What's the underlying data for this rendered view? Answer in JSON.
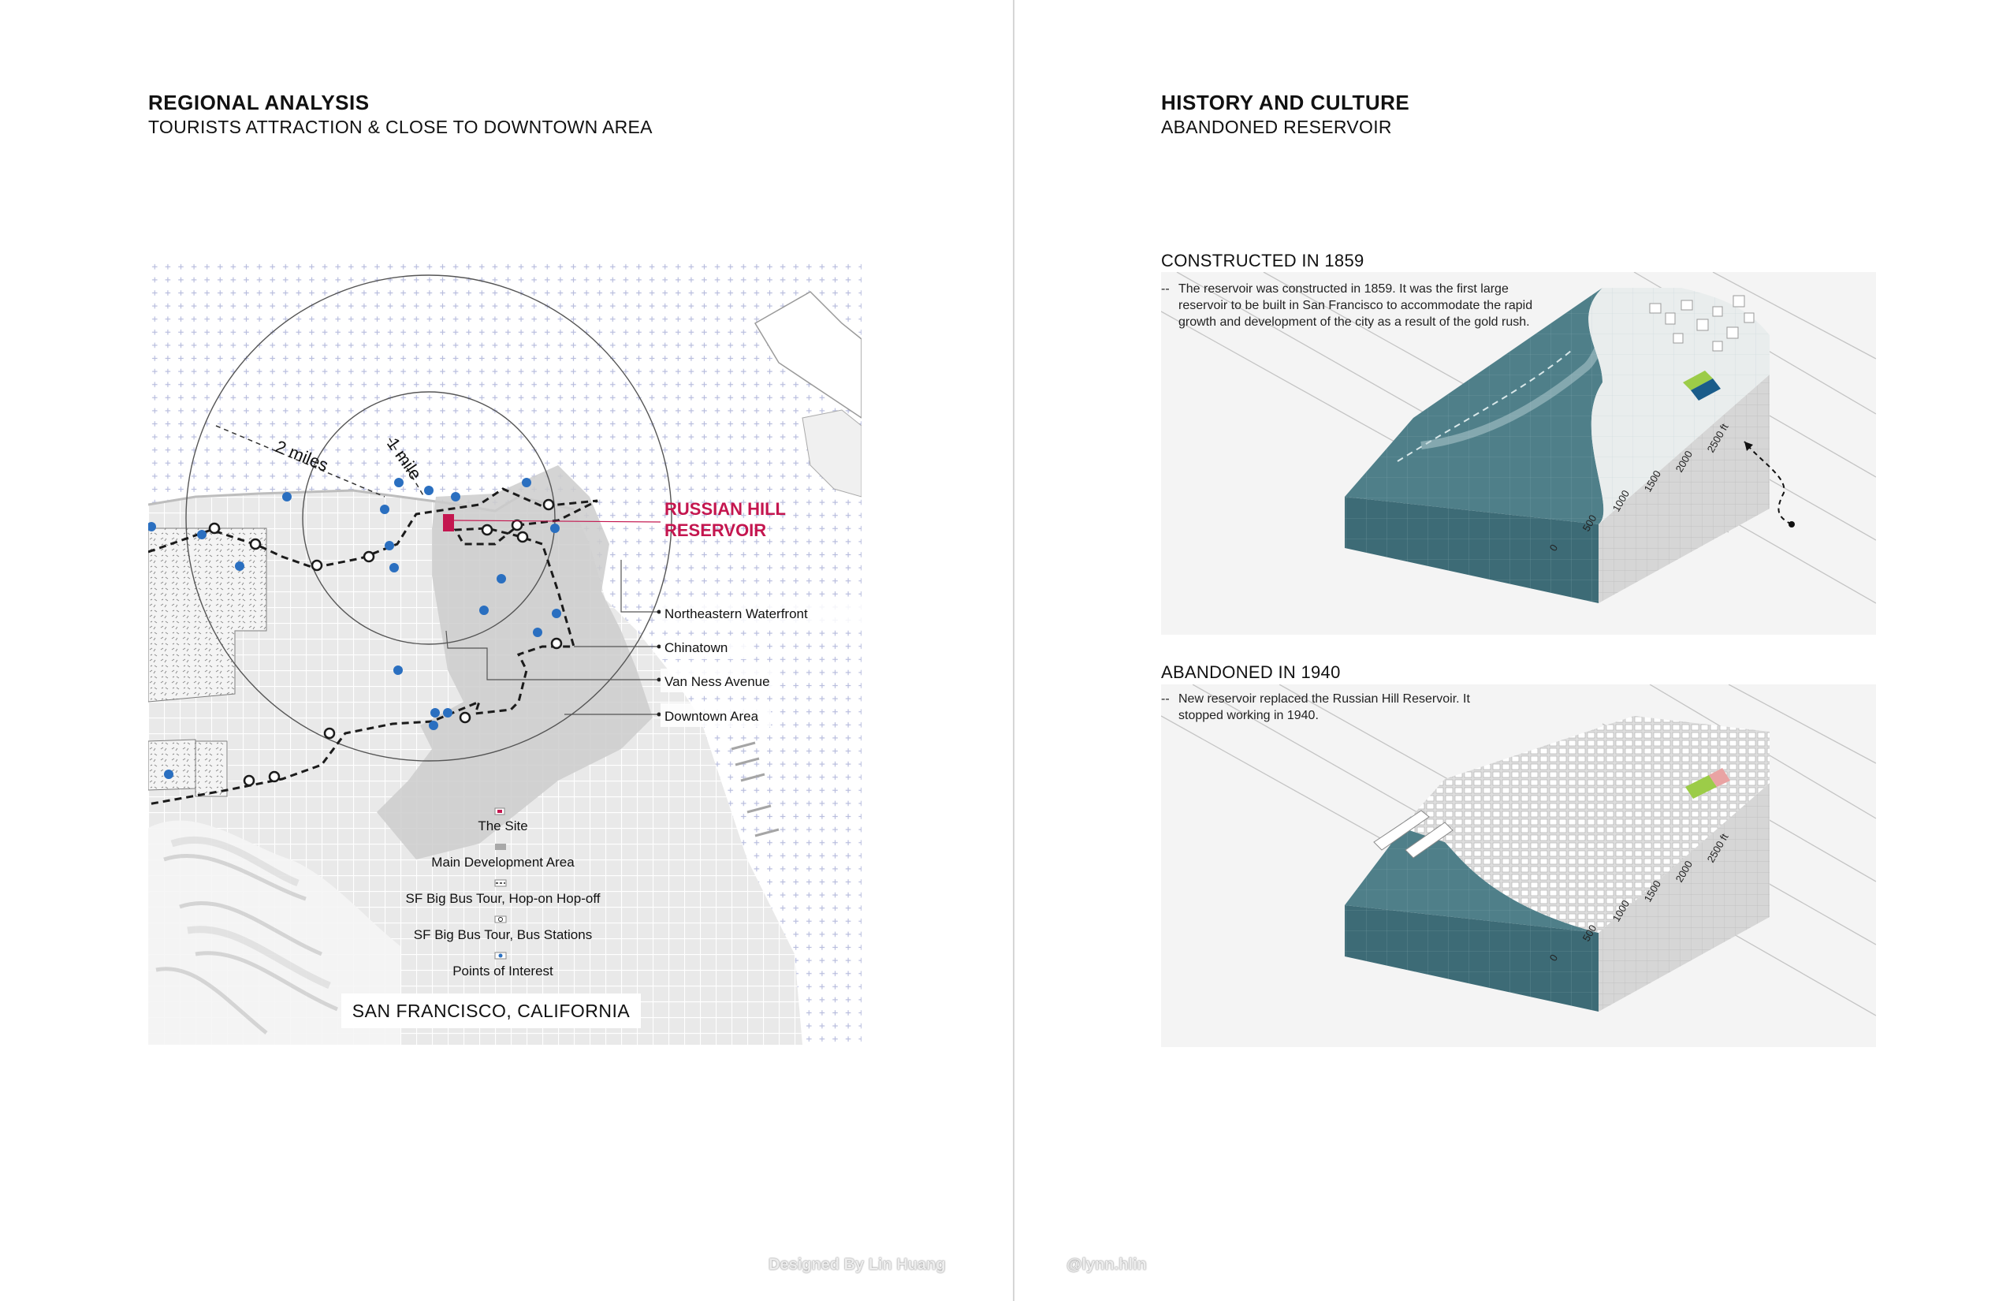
{
  "left_page": {
    "title": "REGIONAL ANALYSIS",
    "subtitle": "TOURISTS ATTRACTION & CLOSE TO DOWNTOWN AREA",
    "map": {
      "radius_labels": [
        "2 miles",
        "1 mile"
      ],
      "site_label_line1": "RUSSIAN HILL",
      "site_label_line2": "RESERVOIR",
      "callouts": [
        "Northeastern Waterfront",
        "Chinatown",
        "Van Ness Avenue",
        "Downtown Area"
      ],
      "legend": [
        {
          "label": "The Site",
          "icon": "site-square-icon"
        },
        {
          "label": "Main Development Area",
          "icon": "gray-area-icon"
        },
        {
          "label": "SF Big Bus Tour, Hop-on Hop-off",
          "icon": "dashed-route-icon"
        },
        {
          "label": "SF Big Bus Tour, Bus Stations",
          "icon": "bus-station-icon"
        },
        {
          "label": "Points of Interest",
          "icon": "blue-dot-icon"
        }
      ],
      "location_label": "SAN FRANCISCO, CALIFORNIA",
      "colors": {
        "site": "#c4164f",
        "poi": "#2a6fc0",
        "development": "#c9c9c9",
        "grid": "#b9bede"
      }
    }
  },
  "right_page": {
    "title": "HISTORY AND CULTURE",
    "subtitle": "ABANDONED RESERVOIR",
    "sections": [
      {
        "label": "CONSTRUCTED IN 1859",
        "dash": "--",
        "caption": "The reservoir was constructed in 1859. It was the first large reservoir to be built in San Francisco to accommodate the rapid growth and development of the city as a result of the gold rush.",
        "scale_ticks": [
          "0",
          "500",
          "1000",
          "1500",
          "2000",
          "2500 ft"
        ]
      },
      {
        "label": "ABANDONED IN 1940",
        "dash": "--",
        "caption": "New reservoir replaced the Russian Hill Reservoir. It stopped working in 1940.",
        "scale_ticks": [
          "0",
          "500",
          "1000",
          "1500",
          "2000",
          "2500 ft"
        ]
      }
    ],
    "colors": {
      "water": "#4f7f89",
      "reservoir_green": "#9ccc48",
      "reservoir_blue": "#1a5c8a",
      "reservoir_pink": "#e9a3a3"
    }
  },
  "footer": {
    "designer": "Designed By Lin Huang",
    "handle": "@lynn.hlin"
  }
}
